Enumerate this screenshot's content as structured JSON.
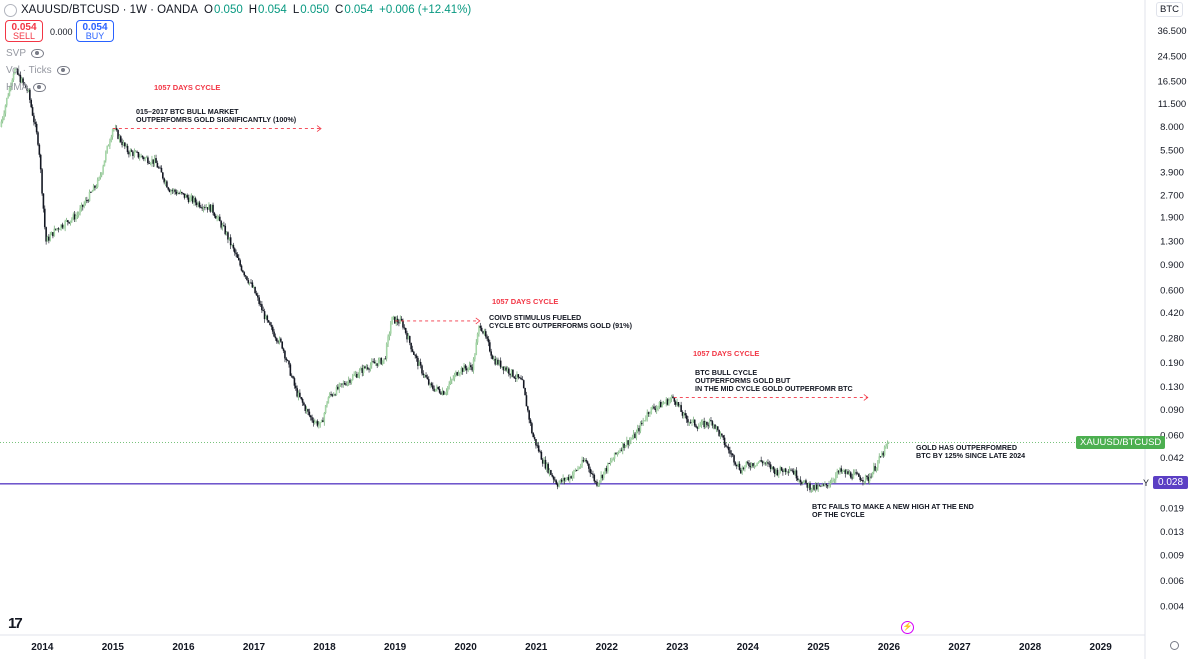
{
  "header": {
    "symbol": "XAUUSD/BTCUSD · 1W · OANDA",
    "open_label": "O",
    "open": "0.050",
    "high_label": "H",
    "high": "0.054",
    "low_label": "L",
    "low": "0.050",
    "close_label": "C",
    "close": "0.054",
    "change": "+0.006 (+12.41%)"
  },
  "trade": {
    "sell_price": "0.054",
    "sell_label": "SELL",
    "buy_price": "0.054",
    "buy_label": "BUY",
    "spread": "0.000"
  },
  "indicators": [
    "SVP",
    "Vol · Ticks",
    "HMA"
  ],
  "currency": "BTC",
  "price_scale": {
    "ticks": [
      "36.500",
      "24.500",
      "16.500",
      "11.500",
      "8.000",
      "5.500",
      "3.900",
      "2.700",
      "1.900",
      "1.300",
      "0.900",
      "0.600",
      "0.420",
      "0.280",
      "0.190",
      "0.130",
      "0.090",
      "0.060",
      "0.042",
      "0.019",
      "0.013",
      "0.009",
      "0.006",
      "0.004"
    ],
    "symbol_tag": "XAUUSD/BTCUSD",
    "y_marker": "Y",
    "last_price": "0.028"
  },
  "time_axis": [
    "2014",
    "2015",
    "2016",
    "2017",
    "2018",
    "2019",
    "2020",
    "2021",
    "2022",
    "2023",
    "2024",
    "2025",
    "2026",
    "2027",
    "2028",
    "2029"
  ],
  "annotations": {
    "cycle1": "1057 DAYS CYCLE",
    "note1": [
      "015–2017 BTC BULL MARKET",
      "OUTPERFOMRS GOLD SIGNIFICANTLY (100%)"
    ],
    "cycle2": "1057 DAYS CYCLE",
    "note2": [
      "COIVD STIMULUS FUELED",
      "CYCLE BTC OUTPERFORMS GOLD (91%)"
    ],
    "cycle3": "1057 DAYS CYCLE",
    "note3": [
      "BTC BULL CYCLE",
      "OUTPERFORMS GOLD BUT",
      "IN THE MID CYCLE GOLD OUTPERFOMR BTC"
    ],
    "note4": [
      "GOLD HAS OUTPERFOMRED",
      "BTC BY 125% SINCE LATE 2024"
    ],
    "note5": [
      "BTC FAILS TO MAKE A NEW HIGH AT THE END",
      "OF THE CYCLE"
    ]
  },
  "colors": {
    "up": "#089981",
    "down": "#f23645",
    "candle_up": "#a5d6a7",
    "candle_down": "#131722",
    "level": "#5b3fc4",
    "annot_red": "#f23645"
  },
  "chart_data": {
    "type": "line",
    "title": "",
    "scale": "log",
    "ylim": [
      0.0035,
      45
    ],
    "xlim": [
      2013.4,
      2029.6
    ],
    "x": [
      2013.4,
      2013.6,
      2013.8,
      2013.95,
      2014.05,
      2014.2,
      2014.5,
      2014.8,
      2015.0,
      2015.2,
      2015.4,
      2015.6,
      2015.8,
      2016.0,
      2016.2,
      2016.4,
      2016.6,
      2016.8,
      2017.0,
      2017.2,
      2017.4,
      2017.6,
      2017.8,
      2017.95,
      2018.05,
      2018.3,
      2018.6,
      2018.85,
      2018.95,
      2019.1,
      2019.3,
      2019.5,
      2019.7,
      2019.9,
      2020.1,
      2020.2,
      2020.4,
      2020.6,
      2020.8,
      2020.95,
      2021.1,
      2021.3,
      2021.5,
      2021.7,
      2021.85,
      2022.0,
      2022.2,
      2022.4,
      2022.6,
      2022.8,
      2022.95,
      2023.1,
      2023.3,
      2023.5,
      2023.7,
      2023.9,
      2024.0,
      2024.2,
      2024.4,
      2024.6,
      2024.8,
      2024.95,
      2025.1,
      2025.3,
      2025.5,
      2025.7,
      2025.85,
      2026.0
    ],
    "y": [
      8.0,
      20.0,
      14.0,
      6.0,
      1.3,
      1.6,
      2.0,
      3.4,
      8.0,
      5.5,
      5.0,
      4.6,
      3.0,
      2.7,
      2.4,
      2.2,
      1.5,
      0.9,
      0.6,
      0.35,
      0.25,
      0.12,
      0.08,
      0.07,
      0.11,
      0.14,
      0.18,
      0.2,
      0.38,
      0.36,
      0.2,
      0.13,
      0.12,
      0.17,
      0.18,
      0.36,
      0.2,
      0.17,
      0.14,
      0.06,
      0.04,
      0.028,
      0.032,
      0.041,
      0.028,
      0.036,
      0.05,
      0.06,
      0.09,
      0.1,
      0.11,
      0.08,
      0.07,
      0.075,
      0.05,
      0.035,
      0.038,
      0.04,
      0.034,
      0.036,
      0.028,
      0.026,
      0.027,
      0.034,
      0.032,
      0.03,
      0.04,
      0.054
    ],
    "levels": [
      0.054,
      0.028
    ],
    "grid": false
  }
}
